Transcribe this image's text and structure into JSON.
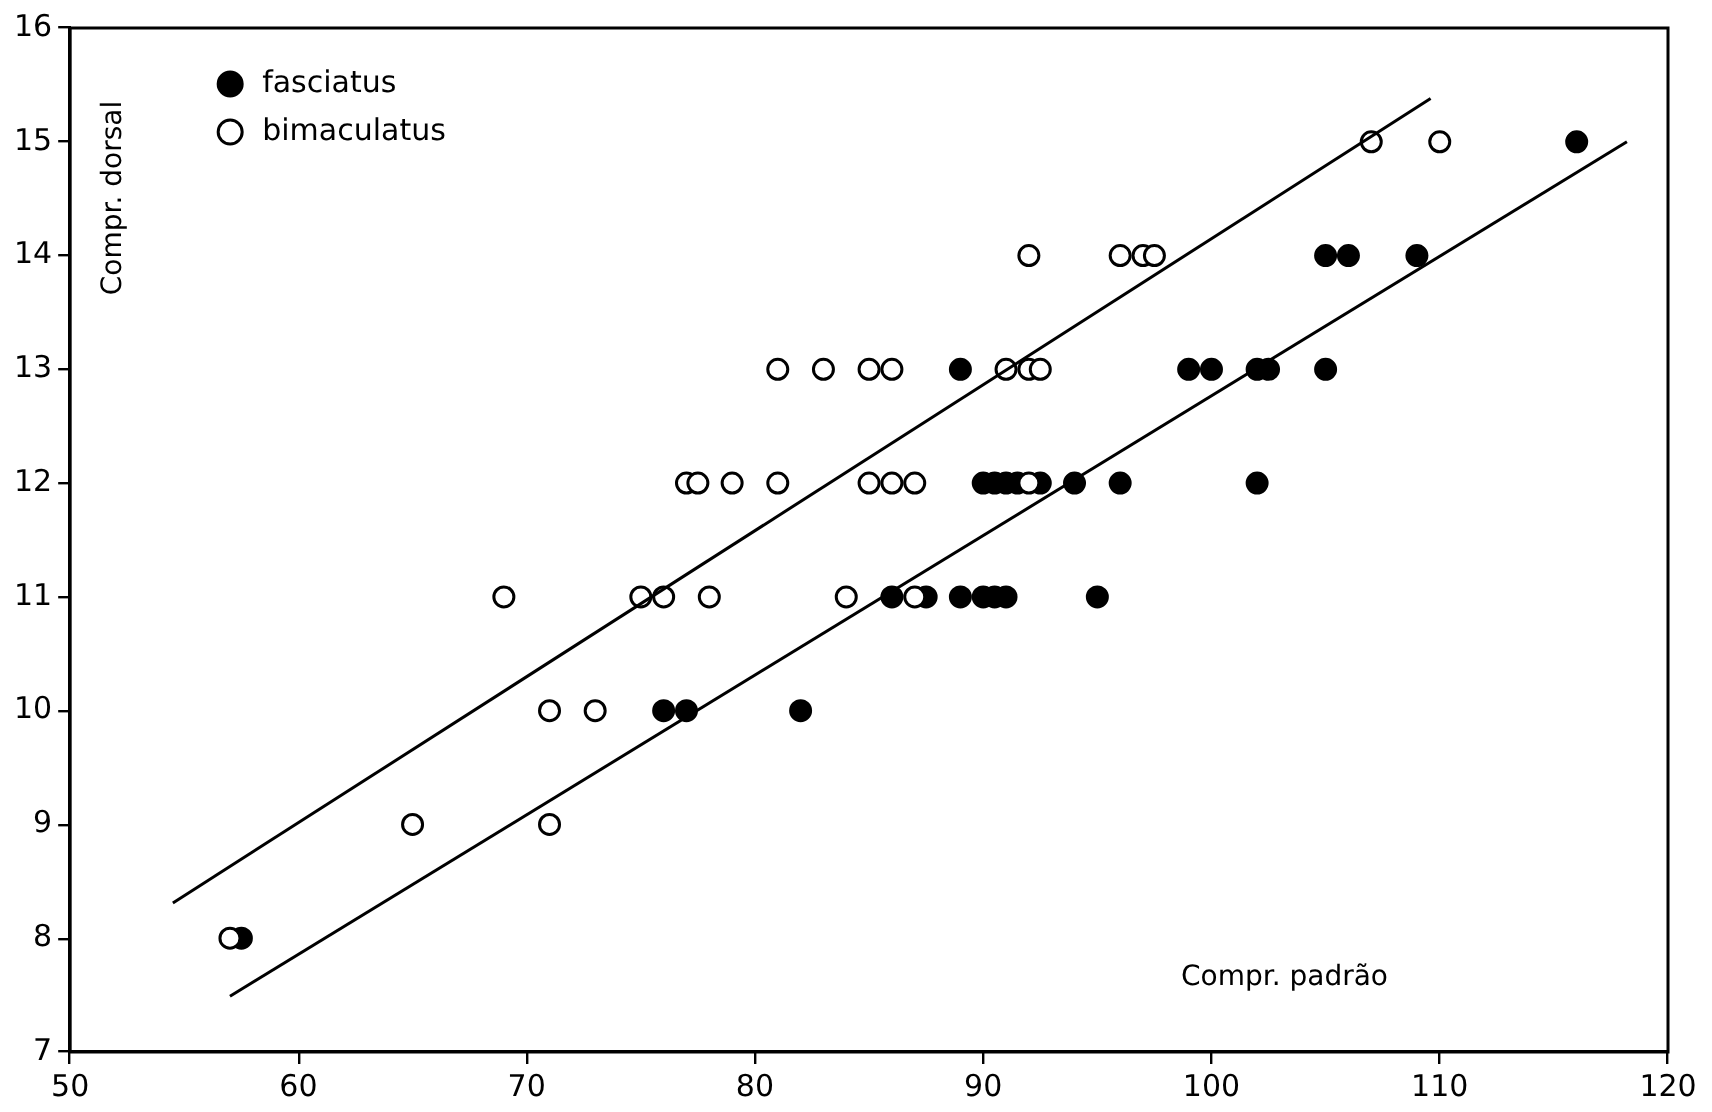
{
  "chart_data": {
    "type": "scatter",
    "xlabel": "Compr. padrão",
    "ylabel": "Compr. dorsal",
    "xlim": [
      50,
      120
    ],
    "xticks": [
      50,
      60,
      70,
      80,
      90,
      100,
      110,
      120
    ],
    "ylim": [
      7,
      16
    ],
    "yticks": [
      7,
      8,
      9,
      10,
      11,
      12,
      13,
      14,
      15,
      16
    ],
    "grid": false,
    "legend": "top left",
    "marker": "circle",
    "series": [
      {
        "name": "fasciatus",
        "color": "#000000",
        "x": [
          57.5,
          76,
          77,
          82,
          86,
          87.5,
          89,
          90,
          90.5,
          91,
          95,
          90,
          90.5,
          91,
          91.5,
          92.5,
          94,
          96,
          102,
          89,
          99,
          100,
          102,
          102.5,
          105,
          105,
          106,
          109,
          116
        ],
        "values": [
          8,
          10,
          10,
          10,
          11,
          11,
          11,
          11,
          11,
          11,
          11,
          12,
          12,
          12,
          12,
          12,
          12,
          12,
          12,
          13,
          13,
          13,
          13,
          13,
          13,
          14,
          14,
          14,
          15
        ]
      },
      {
        "name": "bimaculatus",
        "color": "#ffffff",
        "x": [
          57,
          65,
          71,
          71,
          73,
          69,
          75,
          76,
          78,
          84,
          87,
          77,
          77.5,
          79,
          81,
          85,
          86,
          87,
          92,
          81,
          83,
          85,
          86,
          91,
          92,
          92.5,
          92,
          96,
          97,
          97.5,
          107,
          110
        ],
        "values": [
          8,
          9,
          9,
          10,
          10,
          11,
          11,
          11,
          11,
          11,
          11,
          12,
          12,
          12,
          12,
          12,
          12,
          12,
          12,
          13,
          13,
          13,
          13,
          13,
          13,
          13,
          14,
          14,
          14,
          14,
          15,
          15
        ]
      },
      {
        "type": "line",
        "color": "#000000",
        "marker": "none",
        "x": [
          54.5,
          109.6
        ],
        "values": [
          8.31,
          15.38
        ]
      },
      {
        "type": "line",
        "color": "#000000",
        "marker": "none",
        "x": [
          57,
          118.2
        ],
        "values": [
          7.49,
          15
        ]
      }
    ]
  }
}
